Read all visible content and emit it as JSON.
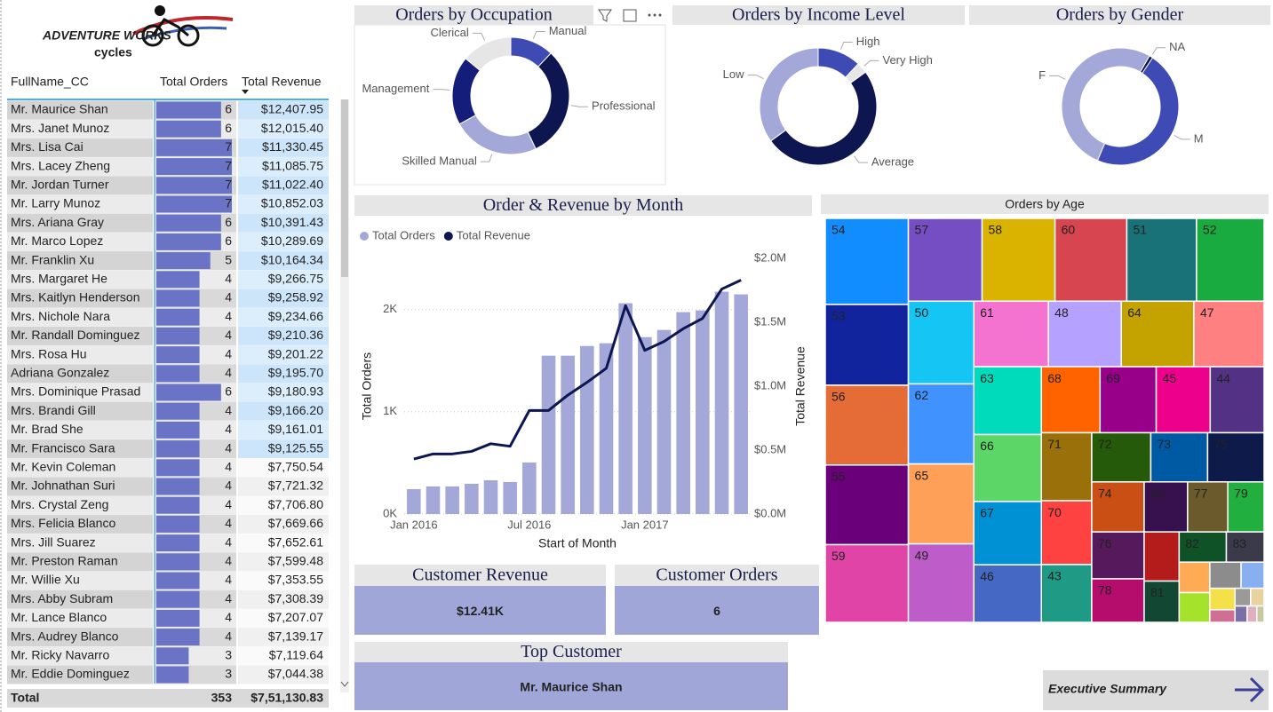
{
  "logo": {
    "brand": "ADVENTURE WORKS",
    "name": "cycles"
  },
  "table": {
    "columns": [
      "FullName_CC",
      "Total Orders",
      "Total Revenue"
    ],
    "rows": [
      [
        "Mr. Maurice Shan",
        6,
        "$12,407.95"
      ],
      [
        "Mrs. Janet Munoz",
        6,
        "$12,015.40"
      ],
      [
        "Mrs. Lisa Cai",
        7,
        "$11,330.45"
      ],
      [
        "Mrs. Lacey Zheng",
        7,
        "$11,085.75"
      ],
      [
        "Mr. Jordan Turner",
        7,
        "$11,022.40"
      ],
      [
        "Mr. Larry Munoz",
        7,
        "$10,852.03"
      ],
      [
        "Mrs. Ariana Gray",
        6,
        "$10,391.43"
      ],
      [
        "Mr. Marco Lopez",
        6,
        "$10,289.69"
      ],
      [
        "Mr. Franklin Xu",
        5,
        "$10,164.34"
      ],
      [
        "Mrs. Margaret He",
        4,
        "$9,266.75"
      ],
      [
        "Mrs. Kaitlyn Henderson",
        4,
        "$9,258.92"
      ],
      [
        "Mrs. Nichole Nara",
        4,
        "$9,234.66"
      ],
      [
        "Mr. Randall Dominguez",
        4,
        "$9,210.36"
      ],
      [
        "Mrs. Rosa Hu",
        4,
        "$9,201.22"
      ],
      [
        "Adriana Gonzalez",
        4,
        "$9,195.70"
      ],
      [
        "Mrs. Dominique Prasad",
        6,
        "$9,180.93"
      ],
      [
        "Mrs. Brandi Gill",
        4,
        "$9,166.20"
      ],
      [
        "Mr. Brad She",
        4,
        "$9,161.01"
      ],
      [
        "Mr. Francisco Sara",
        4,
        "$9,125.55"
      ],
      [
        "Mr. Kevin Coleman",
        4,
        "$7,750.54"
      ],
      [
        "Mr. Johnathan Suri",
        4,
        "$7,721.32"
      ],
      [
        "Mrs. Crystal Zeng",
        4,
        "$7,706.80"
      ],
      [
        "Mrs. Felicia Blanco",
        4,
        "$7,669.66"
      ],
      [
        "Mrs. Jill Suarez",
        4,
        "$7,652.61"
      ],
      [
        "Mr. Preston Raman",
        4,
        "$7,599.48"
      ],
      [
        "Mr. Willie Xu",
        4,
        "$7,353.55"
      ],
      [
        "Mrs. Abby Subram",
        4,
        "$7,308.39"
      ],
      [
        "Mr. Lance Blanco",
        4,
        "$7,207.07"
      ],
      [
        "Mrs. Audrey Blanco",
        4,
        "$7,139.17"
      ],
      [
        "Mr. Ricky Navarro",
        3,
        "$7,119.64"
      ],
      [
        "Mr. Eddie Dominguez",
        3,
        "$7,044.38"
      ]
    ],
    "total": [
      "Total",
      353,
      "$7,51,130.83"
    ],
    "bar_color": "#6A73C6"
  },
  "chart_data": [
    {
      "type": "donut",
      "title": "Orders by Occupation",
      "categories": [
        "Manual",
        "Professional",
        "Skilled Manual",
        "Management",
        "Clerical"
      ],
      "values": [
        12,
        31,
        24,
        19,
        14
      ],
      "colors": [
        "#3F4BB5",
        "#0D1650",
        "#A4A8D8",
        "#141E7A",
        "#E6E6E6"
      ]
    },
    {
      "type": "donut",
      "title": "Orders by Income Level",
      "categories": [
        "High",
        "Very High",
        "Average",
        "Low"
      ],
      "values": [
        12,
        3,
        50,
        35
      ],
      "colors": [
        "#3F4BB5",
        "#E6E6E6",
        "#0D1650",
        "#A4A8D8"
      ]
    },
    {
      "type": "donut",
      "title": "Orders by Gender",
      "categories": [
        "NA",
        "M",
        "F"
      ],
      "values": [
        1,
        47,
        52
      ],
      "colors": [
        "#0D1650",
        "#3F4BB5",
        "#A4A8D8"
      ]
    },
    {
      "type": "combo",
      "title": "Order & Revenue by Month",
      "x_label": "Start of Month",
      "y_label": "Total Orders",
      "y2_label": "Total Revenue",
      "x": [
        "2016-01",
        "2016-02",
        "2016-03",
        "2016-04",
        "2016-05",
        "2016-06",
        "2016-07",
        "2016-08",
        "2016-09",
        "2016-10",
        "2016-11",
        "2016-12",
        "2017-01",
        "2017-02",
        "2017-03",
        "2017-04",
        "2017-05",
        "2017-06"
      ],
      "xticks": [
        {
          "value": "2016-01",
          "label": "Jan 2016"
        },
        {
          "value": "2016-07",
          "label": "Jul 2016"
        },
        {
          "value": "2017-01",
          "label": "Jan 2017"
        }
      ],
      "series": [
        {
          "name": "Total Orders",
          "type": "bar",
          "color": "#A4A8D8",
          "values": [
            243,
            270,
            270,
            296,
            330,
            313,
            504,
            1548,
            1548,
            1643,
            1670,
            2061,
            1730,
            1800,
            1974,
            1991,
            2174,
            2148
          ]
        },
        {
          "name": "Total Revenue",
          "type": "line",
          "axis": "y2",
          "color": "#0D1650",
          "values": [
            430000,
            470000,
            470000,
            490000,
            550000,
            530000,
            810000,
            810000,
            930000,
            1030000,
            1140000,
            1630000,
            1280000,
            1350000,
            1450000,
            1530000,
            1760000,
            1830000
          ]
        }
      ],
      "ylim": [
        0,
        2500
      ],
      "yticks": [
        {
          "value": 0,
          "label": "0K"
        },
        {
          "value": 1000,
          "label": "1K"
        },
        {
          "value": 2000,
          "label": "2K"
        }
      ],
      "y2lim": [
        0,
        2000000
      ],
      "y2ticks": [
        {
          "value": 0,
          "label": "$0.0M"
        },
        {
          "value": 500000,
          "label": "$0.5M"
        },
        {
          "value": 1000000,
          "label": "$1.0M"
        },
        {
          "value": 1500000,
          "label": "$1.5M"
        },
        {
          "value": 2000000,
          "label": "$2.0M"
        }
      ],
      "grid": true,
      "legend": "top-left"
    },
    {
      "type": "treemap",
      "title": "Orders by Age",
      "categories": [
        "54",
        "53",
        "56",
        "55",
        "59",
        "57",
        "58",
        "60",
        "51",
        "52",
        "50",
        "62",
        "65",
        "49",
        "61",
        "48",
        "64",
        "47",
        "63",
        "66",
        "67",
        "46",
        "68",
        "69",
        "45",
        "44",
        "71",
        "70",
        "43",
        "72",
        "73",
        "75",
        "74",
        "76",
        "78",
        "42",
        "77",
        "79",
        null,
        "81",
        "82",
        "83",
        null,
        null,
        null,
        null,
        null,
        null,
        null,
        null,
        null,
        null,
        null
      ],
      "values": [
        902,
        847,
        836,
        835,
        814,
        770,
        762,
        750,
        728,
        706,
        683,
        661,
        660,
        648,
        616,
        602,
        600,
        580,
        578,
        570,
        539,
        490,
        489,
        468,
        450,
        449,
        432,
        405,
        367,
        366,
        352,
        350,
        331,
        310,
        288,
        274,
        254,
        229,
        217,
        182,
        180,
        144,
        118,
        115,
        103,
        76,
        68,
        40,
        35,
        30,
        25,
        20,
        15
      ],
      "colors": [
        "#118DFF",
        "#12239E",
        "#E66C37",
        "#6B007B",
        "#E044A7",
        "#744EC2",
        "#D9B300",
        "#D64550",
        "#197278",
        "#1AAB40",
        "#15C6F4",
        "#4092FF",
        "#FFA058",
        "#BE5DC9",
        "#F472D0",
        "#B5A1FF",
        "#C4A200",
        "#FF8080",
        "#00DBBC",
        "#5BD667",
        "#0091D5",
        "#4668C5",
        "#FF6300",
        "#99008A",
        "#EC008C",
        "#533285",
        "#99700A",
        "#FE4141",
        "#1F9A85",
        "#255A0A",
        "#0059A3",
        "#0D1A4A",
        "#CA4F14",
        "#561A5C",
        "#B50D6C",
        "#37114E",
        "#6B5A2B",
        "#21B040",
        "#B41C1C",
        "#124734",
        "#0F5228",
        "#3A3A4A",
        "#FFAA55",
        "#A5E22C",
        "#8C8C8C",
        "#88B0F0",
        "#F5E04A",
        "#CF6F95",
        "#9A9A9A",
        "#E8D2A0",
        "#7A6FA8",
        "#E0B0C0",
        "#C8C8A0"
      ]
    }
  ],
  "cards": [
    {
      "title": "Customer Revenue",
      "value": "$12.41K"
    },
    {
      "title": "Customer Orders",
      "value": 6
    },
    {
      "title": "Top Customer",
      "value": "Mr. Maurice Shan"
    }
  ],
  "button": {
    "label": "Executive Summary"
  }
}
